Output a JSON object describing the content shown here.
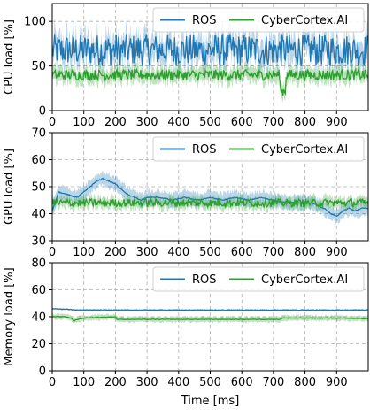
{
  "chart_data": [
    {
      "type": "line",
      "ylabel": "CPU load [%]",
      "xlabel": "",
      "xlim": [
        0,
        1000
      ],
      "ylim": [
        0,
        120
      ],
      "xticks": [
        0,
        100,
        200,
        300,
        400,
        500,
        600,
        700,
        800,
        900
      ],
      "yticks": [
        0,
        50,
        100
      ],
      "grid": true,
      "legend": "top-right",
      "series": [
        {
          "name": "ROS",
          "color": "#1f77b4",
          "mean": 68,
          "noise": 18,
          "band": 14
        },
        {
          "name": "CyberCortex.AI",
          "color": "#2ca02c",
          "mean": 40,
          "noise": 6,
          "band": 8
        }
      ]
    },
    {
      "type": "line",
      "ylabel": "GPU load [%]",
      "xlabel": "",
      "xlim": [
        0,
        1000
      ],
      "ylim": [
        30,
        70
      ],
      "xticks": [
        0,
        100,
        200,
        300,
        400,
        500,
        600,
        700,
        800,
        900
      ],
      "yticks": [
        30,
        40,
        50,
        60,
        70
      ],
      "grid": true,
      "legend": "top-right",
      "series": [
        {
          "name": "ROS",
          "color": "#1f77b4",
          "band": 2.5,
          "x": [
            0,
            20,
            50,
            80,
            100,
            120,
            140,
            160,
            180,
            200,
            220,
            240,
            260,
            280,
            300,
            340,
            380,
            420,
            460,
            500,
            540,
            580,
            620,
            660,
            700,
            740,
            780,
            820,
            860,
            880,
            900,
            920,
            940,
            960,
            980,
            1000
          ],
          "y": [
            41,
            48,
            47,
            46,
            48,
            50,
            52,
            53,
            52,
            51,
            49,
            47,
            46,
            45,
            46,
            46,
            45,
            46,
            45,
            46,
            45,
            46,
            45,
            46,
            45,
            44,
            44,
            44,
            42,
            40,
            39,
            41,
            42,
            41,
            42,
            42
          ]
        },
        {
          "name": "CyberCortex.AI",
          "color": "#2ca02c",
          "mean": 44,
          "noise": 1.5,
          "band": 2
        }
      ]
    },
    {
      "type": "line",
      "ylabel": "Memory load [%]",
      "xlabel": "Time [ms]",
      "xlim": [
        0,
        1000
      ],
      "ylim": [
        0,
        80
      ],
      "xticks": [
        0,
        100,
        200,
        300,
        400,
        500,
        600,
        700,
        800,
        900
      ],
      "yticks": [
        0,
        20,
        40,
        60,
        80
      ],
      "grid": true,
      "legend": "top-right",
      "series": [
        {
          "name": "ROS",
          "color": "#1f77b4",
          "band": 0.6,
          "x": [
            0,
            50,
            80,
            120,
            200,
            400,
            600,
            800,
            1000
          ],
          "y": [
            46,
            45.5,
            45,
            45,
            45,
            45,
            45,
            45,
            45
          ]
        },
        {
          "name": "CyberCortex.AI",
          "color": "#2ca02c",
          "band": 2,
          "x": [
            0,
            40,
            60,
            70,
            80,
            100,
            150,
            200,
            205,
            300,
            500,
            720,
            730,
            800,
            900,
            1000
          ],
          "y": [
            40,
            40,
            39,
            37,
            38,
            39,
            39.5,
            40,
            38,
            38,
            38,
            38,
            39,
            39,
            39,
            38.5
          ]
        }
      ]
    }
  ]
}
